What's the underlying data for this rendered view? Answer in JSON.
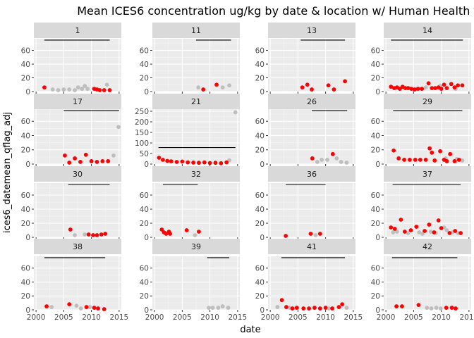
{
  "chart_data": {
    "type": "scatter",
    "title": "Mean ICES6 concentration ug/kg by date & location w/ Human Health threshold",
    "xlabel": "date",
    "ylabel": "ices6_datemean_qflag_adj",
    "xlim": [
      1999.6,
      2015.4
    ],
    "x_ticks": [
      "2000",
      "2005",
      "2010",
      "2015"
    ],
    "grid": true,
    "colors": {
      "panel_background": "#ebebeb",
      "strip_background": "#d9d9d9",
      "grid_major": "#ffffff",
      "grid_minor": "#f5f5f5",
      "threshold_line": "#000000",
      "exceed": "#ff0000",
      "below": "#bebebe"
    },
    "facets": [
      {
        "label": "1",
        "ylim": [
          0,
          77
        ],
        "y_ticks": [
          "0",
          "20",
          "40",
          "60"
        ],
        "threshold": {
          "x_start": 2001.5,
          "x_end": 2013.3,
          "y": 75
        },
        "points_exceed": [
          [
            2001.5,
            6
          ],
          [
            2010.5,
            4
          ],
          [
            2011.0,
            3
          ],
          [
            2011.5,
            2
          ],
          [
            2012.3,
            2
          ],
          [
            2013.3,
            2
          ]
        ],
        "points_below": [
          [
            2003.0,
            3
          ],
          [
            2004.0,
            2
          ],
          [
            2005.0,
            3
          ],
          [
            2006.0,
            3
          ],
          [
            2007.0,
            2
          ],
          [
            2007.6,
            6
          ],
          [
            2008.3,
            4
          ],
          [
            2008.8,
            8
          ],
          [
            2009.3,
            4
          ],
          [
            2012.8,
            10
          ]
        ]
      },
      {
        "label": "11",
        "ylim": [
          0,
          77
        ],
        "y_ticks": [
          "0",
          "20",
          "40",
          "60"
        ],
        "threshold": {
          "x_start": 2007.5,
          "x_end": 2013.8,
          "y": 75
        },
        "points_exceed": [
          [
            2008.8,
            3
          ],
          [
            2011.2,
            10
          ]
        ],
        "points_below": [
          [
            2007.9,
            6
          ],
          [
            2012.3,
            6
          ],
          [
            2013.5,
            9
          ]
        ]
      },
      {
        "label": "13",
        "ylim": [
          0,
          77
        ],
        "y_ticks": [
          "0",
          "20",
          "40",
          "60"
        ],
        "threshold": {
          "x_start": 2005.5,
          "x_end": 2013.5,
          "y": 75
        },
        "points_exceed": [
          [
            2005.8,
            6
          ],
          [
            2006.7,
            10
          ],
          [
            2007.5,
            3
          ],
          [
            2010.5,
            9
          ],
          [
            2011.5,
            3
          ],
          [
            2013.5,
            15
          ]
        ],
        "points_below": []
      },
      {
        "label": "14",
        "ylim": [
          0,
          77
        ],
        "y_ticks": [
          "0",
          "20",
          "40",
          "60"
        ],
        "threshold": {
          "x_start": 2000.9,
          "x_end": 2013.9,
          "y": 75
        },
        "points_exceed": [
          [
            2000.9,
            7
          ],
          [
            2001.5,
            5
          ],
          [
            2002.0,
            6
          ],
          [
            2002.5,
            4
          ],
          [
            2003.0,
            7
          ],
          [
            2003.5,
            5
          ],
          [
            2004.0,
            5
          ],
          [
            2004.6,
            4
          ],
          [
            2005.2,
            3
          ],
          [
            2005.8,
            4
          ],
          [
            2006.5,
            4
          ],
          [
            2007.7,
            12
          ],
          [
            2008.3,
            5
          ],
          [
            2008.9,
            5
          ],
          [
            2009.5,
            6
          ],
          [
            2010.0,
            4
          ],
          [
            2010.5,
            10
          ],
          [
            2011.0,
            5
          ],
          [
            2011.8,
            11
          ],
          [
            2012.4,
            6
          ],
          [
            2013.0,
            9
          ],
          [
            2013.8,
            9
          ]
        ],
        "points_below": [
          [
            2007.2,
            6
          ],
          [
            2009.8,
            8
          ],
          [
            2012.6,
            4
          ]
        ]
      },
      {
        "label": "17",
        "ylim": [
          0,
          77
        ],
        "y_ticks": [
          "0",
          "20",
          "40",
          "60"
        ],
        "threshold": {
          "x_start": 2005.0,
          "x_end": 2015.0,
          "y": 75
        },
        "points_exceed": [
          [
            2005.2,
            12
          ],
          [
            2006.0,
            2
          ],
          [
            2007.0,
            8
          ],
          [
            2008.0,
            3
          ],
          [
            2009.0,
            13
          ],
          [
            2010.0,
            4
          ],
          [
            2011.0,
            3
          ],
          [
            2012.0,
            4
          ],
          [
            2013.0,
            4
          ]
        ],
        "points_below": [
          [
            2014.0,
            12
          ],
          [
            2014.9,
            52
          ]
        ]
      },
      {
        "label": "21",
        "ylim": [
          0,
          260
        ],
        "y_ticks": [
          "0",
          "50",
          "100",
          "150",
          "200",
          "250"
        ],
        "threshold": {
          "x_start": 2000.7,
          "x_end": 2014.6,
          "y": 78
        },
        "points_exceed": [
          [
            2000.8,
            30
          ],
          [
            2001.5,
            20
          ],
          [
            2002.3,
            15
          ],
          [
            2003.0,
            13
          ],
          [
            2004.0,
            10
          ],
          [
            2005.0,
            12
          ],
          [
            2006.0,
            8
          ],
          [
            2007.0,
            7
          ],
          [
            2008.0,
            6
          ],
          [
            2009.0,
            8
          ],
          [
            2010.0,
            5
          ],
          [
            2011.0,
            6
          ],
          [
            2012.0,
            4
          ],
          [
            2013.0,
            8
          ]
        ],
        "points_below": [
          [
            2013.5,
            18
          ],
          [
            2014.6,
            245
          ]
        ]
      },
      {
        "label": "26",
        "ylim": [
          0,
          77
        ],
        "y_ticks": [
          "0",
          "20",
          "40",
          "60"
        ],
        "threshold": {
          "x_start": 2007.5,
          "x_end": 2013.9,
          "y": 75
        },
        "points_exceed": [
          [
            2007.6,
            8
          ],
          [
            2011.3,
            14
          ]
        ],
        "points_below": [
          [
            2008.5,
            3
          ],
          [
            2009.3,
            6
          ],
          [
            2010.3,
            6
          ],
          [
            2012.0,
            8
          ],
          [
            2012.8,
            3
          ],
          [
            2013.8,
            2
          ]
        ]
      },
      {
        "label": "29",
        "ylim": [
          0,
          77
        ],
        "y_ticks": [
          "0",
          "20",
          "40",
          "60"
        ],
        "threshold": {
          "x_start": 2001.3,
          "x_end": 2013.8,
          "y": 75
        },
        "points_exceed": [
          [
            2001.4,
            19
          ],
          [
            2002.3,
            8
          ],
          [
            2003.3,
            6
          ],
          [
            2004.3,
            6
          ],
          [
            2005.3,
            6
          ],
          [
            2006.2,
            6
          ],
          [
            2007.2,
            6
          ],
          [
            2007.9,
            22
          ],
          [
            2008.3,
            16
          ],
          [
            2008.8,
            5
          ],
          [
            2009.8,
            18
          ],
          [
            2010.5,
            6
          ],
          [
            2011.0,
            4
          ],
          [
            2011.6,
            14
          ],
          [
            2012.4,
            4
          ],
          [
            2013.2,
            6
          ]
        ],
        "points_below": [
          [
            2010.8,
            8
          ],
          [
            2012.8,
            7
          ],
          [
            2013.8,
            5
          ]
        ]
      },
      {
        "label": "30",
        "ylim": [
          0,
          77
        ],
        "y_ticks": [
          "0",
          "20",
          "40",
          "60"
        ],
        "threshold": {
          "x_start": 2005.8,
          "x_end": 2013.3,
          "y": 75
        },
        "points_exceed": [
          [
            2006.2,
            11
          ],
          [
            2009.5,
            4
          ],
          [
            2010.3,
            3
          ],
          [
            2011.0,
            3
          ],
          [
            2011.8,
            4
          ],
          [
            2012.5,
            5
          ]
        ],
        "points_below": [
          [
            2007.0,
            3
          ],
          [
            2008.8,
            4
          ]
        ]
      },
      {
        "label": "32",
        "ylim": [
          0,
          77
        ],
        "y_ticks": [
          "0",
          "20",
          "40",
          "60"
        ],
        "threshold": {
          "x_start": 2001.5,
          "x_end": 2007.8,
          "y": 75
        },
        "points_exceed": [
          [
            2001.3,
            11
          ],
          [
            2001.7,
            7
          ],
          [
            2002.1,
            5
          ],
          [
            2002.6,
            8
          ],
          [
            2002.8,
            5
          ],
          [
            2005.8,
            10
          ],
          [
            2008.0,
            8
          ]
        ],
        "points_below": [
          [
            2007.3,
            3
          ]
        ]
      },
      {
        "label": "36",
        "ylim": [
          0,
          77
        ],
        "y_ticks": [
          "0",
          "20",
          "40",
          "60"
        ],
        "threshold": {
          "x_start": 2002.8,
          "x_end": 2010.0,
          "y": 75
        },
        "points_exceed": [
          [
            2002.8,
            2
          ],
          [
            2007.3,
            5
          ],
          [
            2009.0,
            5
          ]
        ],
        "points_below": [
          [
            2008.2,
            3
          ]
        ]
      },
      {
        "label": "37",
        "ylim": [
          0,
          77
        ],
        "y_ticks": [
          "0",
          "20",
          "40",
          "60"
        ],
        "threshold": {
          "x_start": 2001.2,
          "x_end": 2013.5,
          "y": 75
        },
        "points_exceed": [
          [
            2000.9,
            14
          ],
          [
            2001.6,
            12
          ],
          [
            2002.7,
            25
          ],
          [
            2003.4,
            8
          ],
          [
            2004.5,
            10
          ],
          [
            2005.5,
            15
          ],
          [
            2007.0,
            9
          ],
          [
            2007.8,
            18
          ],
          [
            2008.7,
            7
          ],
          [
            2009.5,
            24
          ],
          [
            2010.0,
            13
          ],
          [
            2011.5,
            6
          ],
          [
            2012.5,
            9
          ],
          [
            2013.5,
            6
          ]
        ],
        "points_below": [
          [
            2001.3,
            7
          ],
          [
            2002.0,
            8
          ],
          [
            2004.0,
            6
          ],
          [
            2006.0,
            7
          ],
          [
            2006.6,
            5
          ],
          [
            2008.1,
            8
          ],
          [
            2009.0,
            6
          ],
          [
            2010.5,
            14
          ],
          [
            2011.0,
            10
          ],
          [
            2012.0,
            7
          ],
          [
            2013.0,
            6
          ]
        ]
      },
      {
        "label": "38",
        "ylim": [
          0,
          77
        ],
        "y_ticks": [
          "0",
          "20",
          "40",
          "60"
        ],
        "threshold": {
          "x_start": 2001.5,
          "x_end": 2012.5,
          "y": 75
        },
        "points_exceed": [
          [
            2001.9,
            5
          ],
          [
            2006.0,
            8
          ],
          [
            2009.1,
            4
          ],
          [
            2010.5,
            3
          ],
          [
            2011.2,
            2
          ],
          [
            2012.3,
            1
          ]
        ],
        "points_below": [
          [
            2002.8,
            4
          ],
          [
            2007.3,
            6
          ],
          [
            2008.1,
            2
          ],
          [
            2009.7,
            4
          ]
        ]
      },
      {
        "label": "39",
        "ylim": [
          0,
          77
        ],
        "y_ticks": [
          "0",
          "20",
          "40",
          "60"
        ],
        "threshold": {
          "x_start": 2009.5,
          "x_end": 2013.5,
          "y": 75
        },
        "points_exceed": [],
        "points_below": [
          [
            2009.8,
            3
          ],
          [
            2010.5,
            3
          ],
          [
            2011.5,
            3
          ],
          [
            2012.3,
            5
          ],
          [
            2013.3,
            3
          ]
        ]
      },
      {
        "label": "41",
        "ylim": [
          0,
          77
        ],
        "y_ticks": [
          "0",
          "20",
          "40",
          "60"
        ],
        "threshold": {
          "x_start": 2002.0,
          "x_end": 2013.5,
          "y": 75
        },
        "points_exceed": [
          [
            2002.1,
            14
          ],
          [
            2002.9,
            4
          ],
          [
            2004.0,
            2
          ],
          [
            2004.8,
            3
          ],
          [
            2006.0,
            2
          ],
          [
            2007.0,
            2
          ],
          [
            2008.0,
            3
          ],
          [
            2009.0,
            2
          ],
          [
            2010.0,
            3
          ],
          [
            2011.2,
            2
          ],
          [
            2012.4,
            4
          ],
          [
            2013.0,
            8
          ]
        ],
        "points_below": [
          [
            2001.3,
            4
          ],
          [
            2003.5,
            3
          ],
          [
            2010.6,
            2
          ],
          [
            2013.8,
            3
          ]
        ]
      },
      {
        "label": "42",
        "ylim": [
          0,
          77
        ],
        "y_ticks": [
          "0",
          "20",
          "40",
          "60"
        ],
        "threshold": {
          "x_start": 2001.1,
          "x_end": 2012.9,
          "y": 75
        },
        "points_exceed": [
          [
            2001.9,
            5
          ],
          [
            2002.9,
            5
          ],
          [
            2005.9,
            7
          ],
          [
            2010.9,
            3
          ],
          [
            2011.9,
            3
          ],
          [
            2012.6,
            2
          ]
        ],
        "points_below": [
          [
            2007.4,
            3
          ],
          [
            2008.2,
            2
          ],
          [
            2009.1,
            3
          ],
          [
            2009.9,
            2
          ]
        ]
      }
    ]
  }
}
